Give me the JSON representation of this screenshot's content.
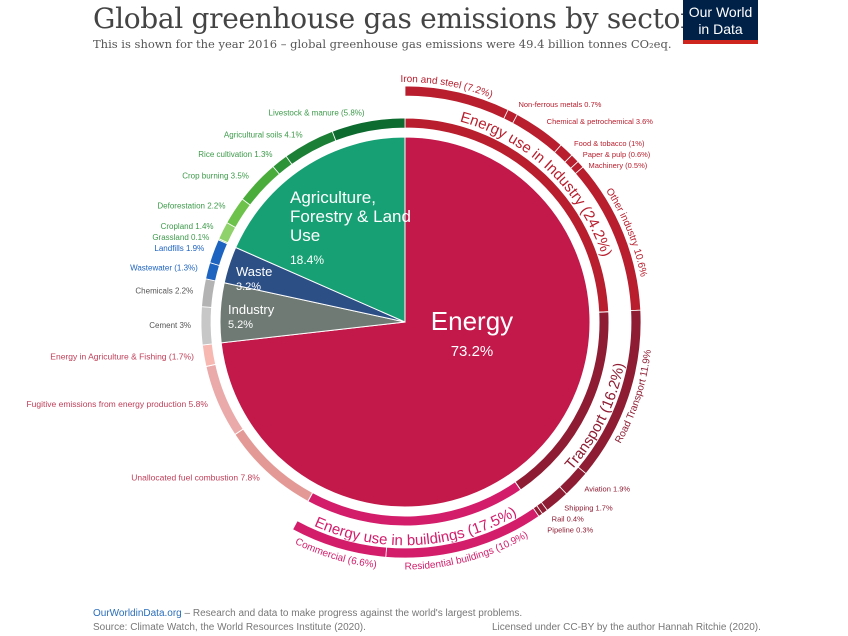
{
  "title": "Global greenhouse gas emissions by sector",
  "subtitle": "This is shown for the year 2016 – global greenhouse gas emissions were 49.4 billion tonnes CO₂eq.",
  "logo": "Our World in Data",
  "footer": {
    "site": "OurWorldinData.org",
    "tagline": " – Research and data to make progress against the world's largest problems.",
    "source": "Source: Climate Watch, the World Resources Institute (2020).",
    "license": "Licensed under CC-BY by the author Hannah Ritchie (2020)."
  },
  "chart_data": {
    "type": "pie",
    "title": "Global greenhouse gas emissions by sector",
    "unit": "% of global emissions",
    "sectors": [
      {
        "name": "Energy",
        "value": 73.2,
        "label": "73.2%",
        "color": "#c2184a"
      },
      {
        "name": "Industry",
        "value": 5.2,
        "label": "5.2%",
        "color": "#6f7a74"
      },
      {
        "name": "Waste",
        "value": 3.2,
        "label": "3.2%",
        "color": "#2c4f86"
      },
      {
        "name": "Agriculture, Forestry & Land Use",
        "value": 18.4,
        "label": "18.4%",
        "color": "#17a074"
      }
    ],
    "energy_subsectors": [
      {
        "name": "Energy use in Industry",
        "value": 24.2,
        "label": "Energy use in Industry (24.2%)",
        "color": "#b81e2d"
      },
      {
        "name": "Transport",
        "value": 16.2,
        "label": "Transport (16.2%)",
        "color": "#8e1d33"
      },
      {
        "name": "Energy use in buildings",
        "value": 17.5,
        "label": "Energy use in buildings (17.5%)",
        "color": "#d31d6b"
      },
      {
        "name": "Unallocated fuel combustion",
        "value": 7.8,
        "label": "Unallocated fuel combustion 7.8%",
        "color": "#e39a96"
      },
      {
        "name": "Fugitive emissions from energy production",
        "value": 5.8,
        "label": "Fugitive emissions from energy production 5.8%",
        "color": "#eaaaaa"
      },
      {
        "name": "Energy in Agriculture & Fishing",
        "value": 1.7,
        "label": "Energy in Agriculture & Fishing (1.7%)",
        "color": "#f7b8b2"
      }
    ],
    "end_uses": [
      {
        "name": "Iron and steel",
        "value": 7.2,
        "label": "Iron and steel (7.2%)",
        "color": "#b81e2d"
      },
      {
        "name": "Non-ferrous metals",
        "value": 0.7,
        "label": "Non-ferrous metals 0.7%",
        "color": "#b81e2d"
      },
      {
        "name": "Chemical & petrochemical",
        "value": 3.6,
        "label": "Chemical & petrochemical 3.6%",
        "color": "#b81e2d"
      },
      {
        "name": "Food & tobacco",
        "value": 1.0,
        "label": "Food & tobacco (1%)",
        "color": "#b81e2d"
      },
      {
        "name": "Paper & pulp",
        "value": 0.6,
        "label": "Paper & pulp (0.6%)",
        "color": "#b81e2d"
      },
      {
        "name": "Machinery",
        "value": 0.5,
        "label": "Machinery (0.5%)",
        "color": "#b81e2d"
      },
      {
        "name": "Other industry",
        "value": 10.6,
        "label": "Other industry 10.6%",
        "color": "#b81e2d"
      },
      {
        "name": "Road Transport",
        "value": 11.9,
        "label": "Road Transport 11.9%",
        "color": "#8e1d33"
      },
      {
        "name": "Aviation",
        "value": 1.9,
        "label": "Aviation 1.9%",
        "color": "#8e1d33"
      },
      {
        "name": "Shipping",
        "value": 1.7,
        "label": "Shipping 1.7%",
        "color": "#8e1d33"
      },
      {
        "name": "Rail",
        "value": 0.4,
        "label": "Rail 0.4%",
        "color": "#8e1d33"
      },
      {
        "name": "Pipeline",
        "value": 0.3,
        "label": "Pipeline 0.3%",
        "color": "#8e1d33"
      },
      {
        "name": "Residential buildings",
        "value": 10.9,
        "label": "Residential buildings (10.9%)",
        "color": "#d31d6b"
      },
      {
        "name": "Commercial",
        "value": 6.6,
        "label": "Commercial (6.6%)",
        "color": "#d31d6b"
      }
    ],
    "other_subsectors": [
      {
        "name": "Cement",
        "value": 3.0,
        "label": "Cement 3%",
        "color": "#c7c7c7"
      },
      {
        "name": "Chemicals",
        "value": 2.2,
        "label": "Chemicals 2.2%",
        "color": "#b3b3b3"
      },
      {
        "name": "Wastewater",
        "value": 1.3,
        "label": "Wastewater (1.3%)",
        "color": "#1d63c0"
      },
      {
        "name": "Landfills",
        "value": 1.9,
        "label": "Landfills 1.9%",
        "color": "#1d63c0"
      },
      {
        "name": "Grassland",
        "value": 0.1,
        "label": "Grassland 0.1%",
        "color": "#8fd16a"
      },
      {
        "name": "Cropland",
        "value": 1.4,
        "label": "Cropland 1.4%",
        "color": "#8fd16a"
      },
      {
        "name": "Deforestation",
        "value": 2.2,
        "label": "Deforestation 2.2%",
        "color": "#6cc24a"
      },
      {
        "name": "Crop burning",
        "value": 3.5,
        "label": "Crop burning 3.5%",
        "color": "#4aac3b"
      },
      {
        "name": "Rice cultivation",
        "value": 1.3,
        "label": "Rice cultivation 1.3%",
        "color": "#2d9337"
      },
      {
        "name": "Agricultural soils",
        "value": 4.1,
        "label": "Agricultural soils 4.1%",
        "color": "#1c7f36"
      },
      {
        "name": "Livestock & manure",
        "value": 5.8,
        "label": "Livestock & manure (5.8%)",
        "color": "#0e6b30"
      }
    ]
  }
}
